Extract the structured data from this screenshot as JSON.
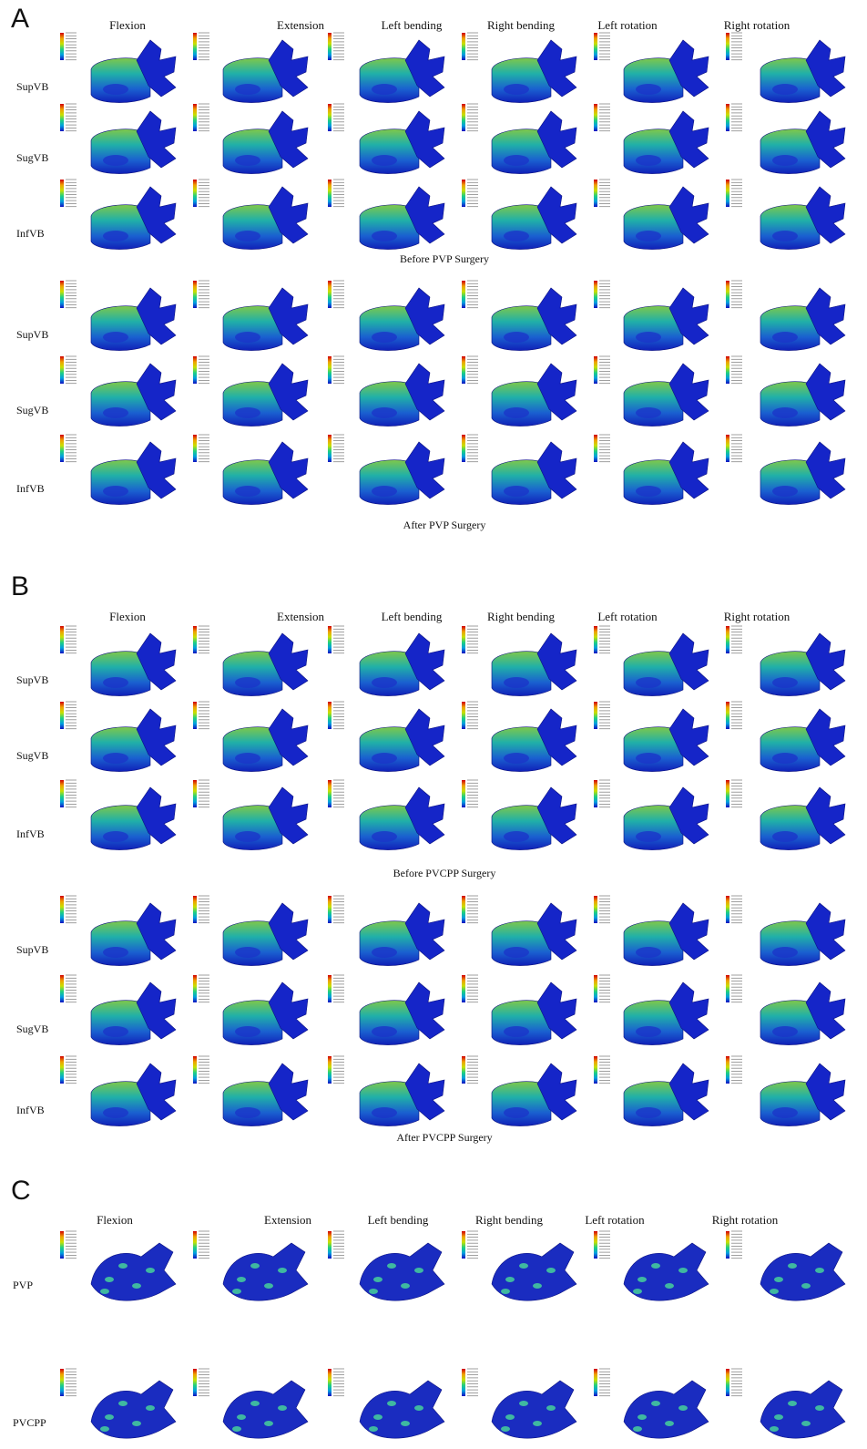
{
  "panels": [
    {
      "letter": "A",
      "columns": [
        "Flexion",
        "Extension",
        "Left bending",
        "Right bending",
        "Left rotation",
        "Right rotation"
      ],
      "groups": [
        {
          "rows": [
            "SupVB",
            "SugVB",
            "InfVB"
          ],
          "caption": "Before PVP Surgery"
        },
        {
          "rows": [
            "SupVB",
            "SugVB",
            "InfVB"
          ],
          "caption": "After PVP Surgery"
        }
      ]
    },
    {
      "letter": "B",
      "columns": [
        "Flexion",
        "Extension",
        "Left bending",
        "Right bending",
        "Left rotation",
        "Right rotation"
      ],
      "groups": [
        {
          "rows": [
            "SupVB",
            "SugVB",
            "InfVB"
          ],
          "caption": "Before PVCPP Surgery"
        },
        {
          "rows": [
            "SupVB",
            "SugVB",
            "InfVB"
          ],
          "caption": "After PVCPP Surgery"
        }
      ]
    },
    {
      "letter": "C",
      "columns": [
        "Flexion",
        "Extension",
        "Left bending",
        "Right bending",
        "Left rotation",
        "Right rotation"
      ],
      "groups": [
        {
          "rows": [
            "PVP",
            "PVCPP"
          ]
        }
      ]
    }
  ]
}
